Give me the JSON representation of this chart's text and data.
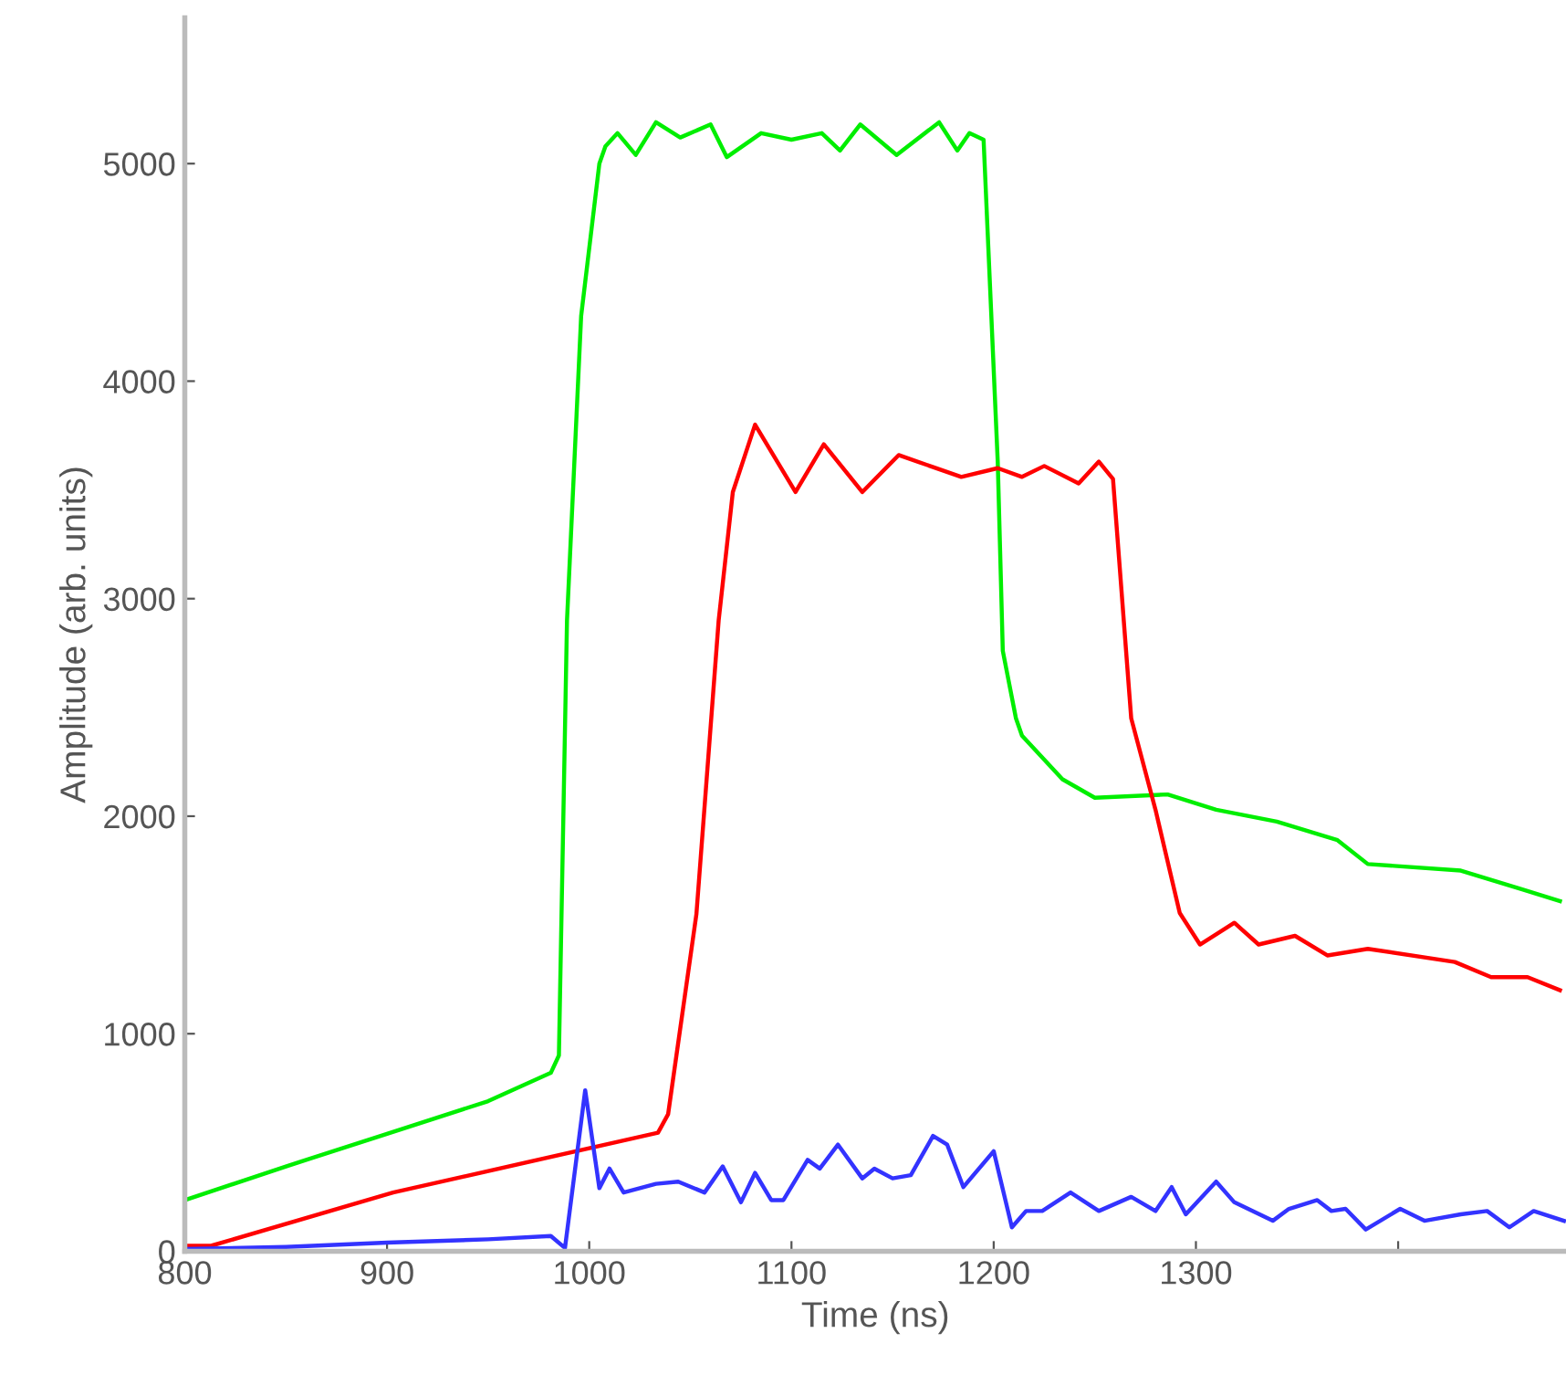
{
  "chart_data": {
    "type": "line",
    "xlabel": "Time (ns)",
    "ylabel": "Amplitude (arb. units)",
    "xlim": [
      800,
      1483
    ],
    "ylim": [
      0,
      5670
    ],
    "xticks": [
      800,
      900,
      1000,
      1100,
      1200,
      1300,
      {
        "value": 1400,
        "label": null
      }
    ],
    "yticks": [
      0,
      1000,
      2000,
      3000,
      4000,
      5000
    ],
    "grid": false,
    "marker": "none",
    "line_style": "solid",
    "series": [
      {
        "color": "#00ee00",
        "x": [
          800,
          850,
          900,
          950,
          981,
          985,
          989,
          996,
          1005,
          1008,
          1014,
          1023,
          1033,
          1045,
          1060,
          1068,
          1085,
          1100,
          1115,
          1124,
          1134,
          1152,
          1173,
          1182,
          1188,
          1195,
          1202,
          1204.5,
          1211,
          1214,
          1234,
          1250,
          1286,
          1310,
          1340,
          1370,
          1385,
          1431,
          1461,
          1480
        ],
        "values": [
          235,
          390,
          540,
          690,
          820,
          900,
          2900,
          4300,
          5000,
          5080,
          5140,
          5040,
          5190,
          5120,
          5180,
          5030,
          5140,
          5110,
          5140,
          5060,
          5180,
          5040,
          5190,
          5060,
          5140,
          5110,
          3630,
          2760,
          2450,
          2370,
          2170,
          2085,
          2100,
          2030,
          1975,
          1890,
          1780,
          1750,
          1665,
          1610
        ]
      },
      {
        "color": "#ff0000",
        "x": [
          800,
          813,
          903,
          1034,
          1039,
          1053,
          1064,
          1071,
          1082,
          1102,
          1116,
          1135,
          1153,
          1184,
          1202,
          1214,
          1225,
          1242,
          1252,
          1259,
          1268,
          1280,
          1292,
          1302,
          1319,
          1331,
          1349,
          1365,
          1385,
          1428,
          1446,
          1464,
          1480
        ],
        "values": [
          25,
          25,
          270,
          545,
          630,
          1550,
          2900,
          3490,
          3800,
          3490,
          3710,
          3490,
          3660,
          3560,
          3600,
          3560,
          3610,
          3530,
          3630,
          3550,
          2450,
          2030,
          1555,
          1410,
          1510,
          1410,
          1450,
          1360,
          1390,
          1330,
          1260,
          1260,
          1200
        ]
      },
      {
        "color": "#3333ff",
        "x": [
          800,
          850,
          900,
          950,
          981,
          988,
          998,
          1005,
          1010,
          1017,
          1033,
          1044,
          1057,
          1066,
          1075,
          1082,
          1090,
          1096,
          1108,
          1114,
          1123,
          1135,
          1141,
          1150,
          1159,
          1170,
          1177,
          1185,
          1200,
          1209,
          1216,
          1224,
          1238,
          1252,
          1268,
          1280,
          1288,
          1295,
          1310,
          1319,
          1338,
          1346,
          1360,
          1367,
          1374,
          1384,
          1401,
          1413,
          1431,
          1444,
          1455,
          1467,
          1482
        ],
        "values": [
          10,
          20,
          40,
          55,
          70,
          15,
          740,
          290,
          380,
          270,
          310,
          320,
          270,
          390,
          225,
          360,
          235,
          235,
          420,
          380,
          490,
          335,
          380,
          335,
          350,
          530,
          490,
          295,
          460,
          110,
          185,
          185,
          270,
          185,
          250,
          185,
          295,
          170,
          320,
          225,
          140,
          195,
          235,
          185,
          195,
          100,
          195,
          140,
          170,
          185,
          110,
          185,
          140
        ]
      }
    ]
  }
}
